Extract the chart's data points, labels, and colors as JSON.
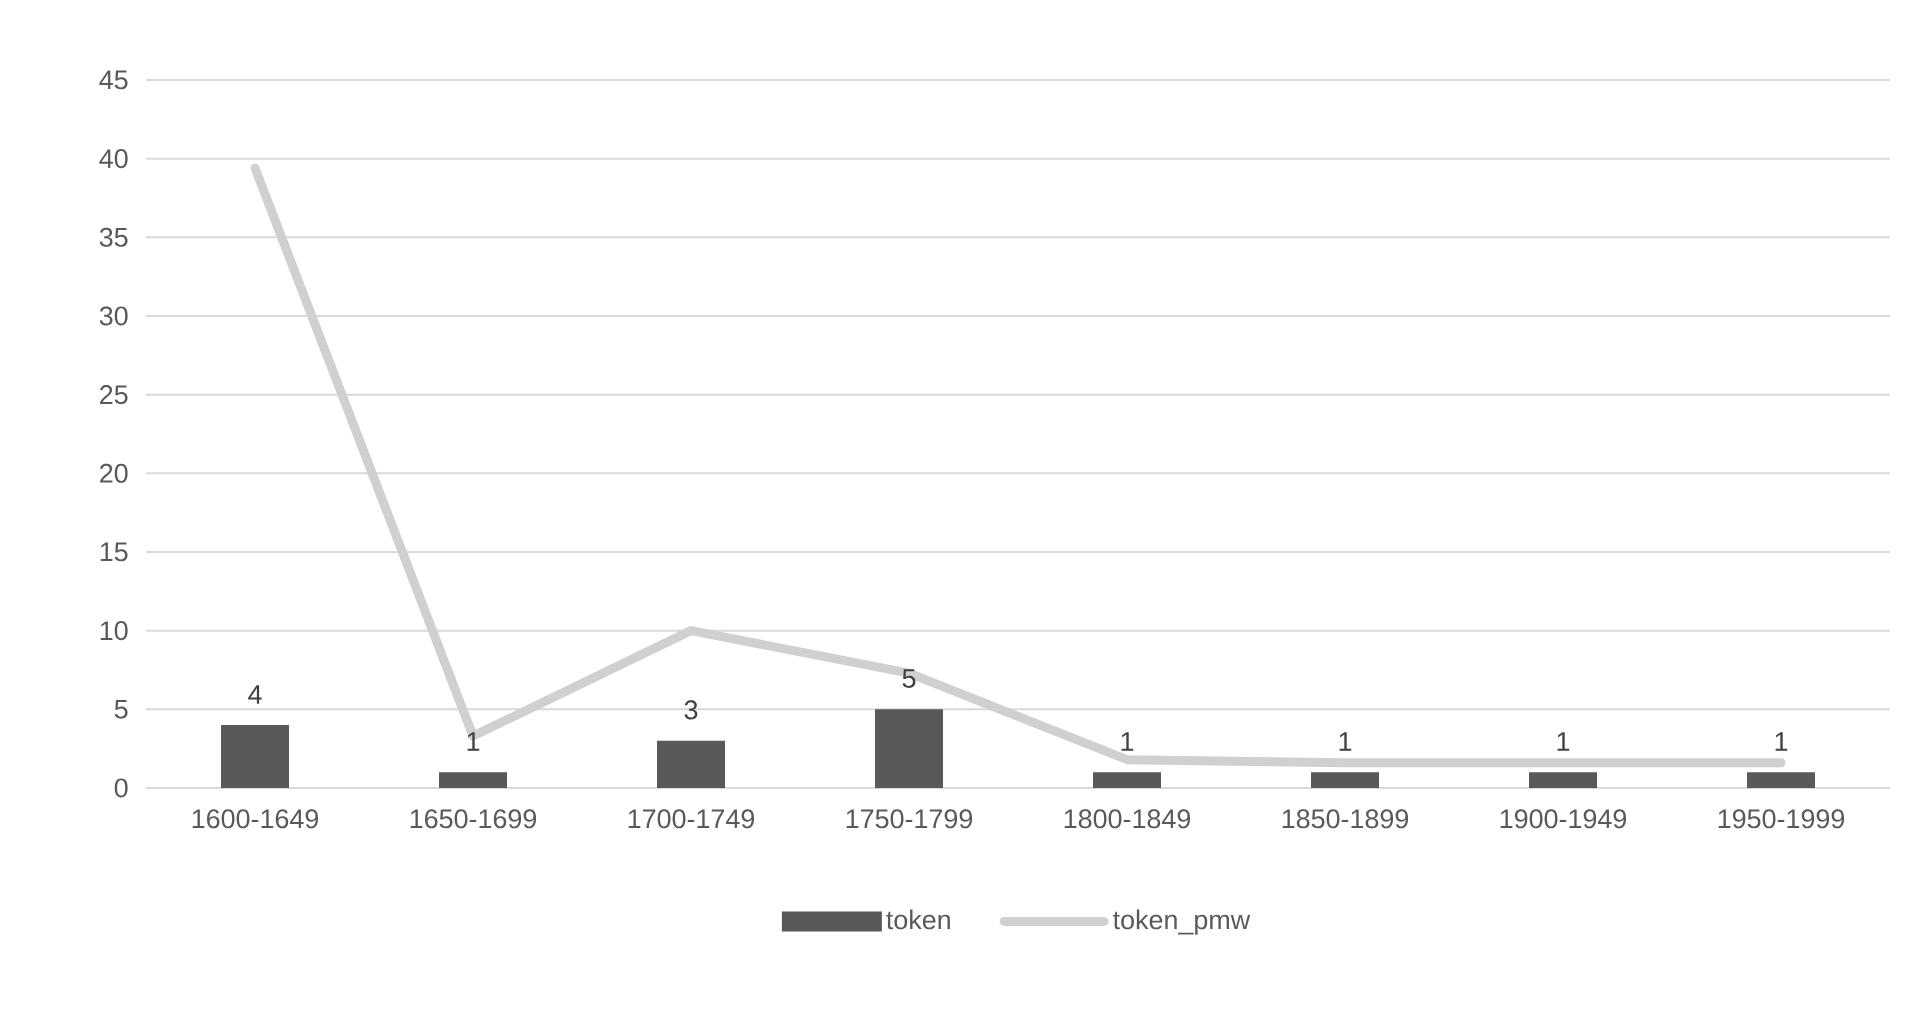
{
  "chart_data": {
    "type": "bar",
    "categories": [
      "1600-1649",
      "1650-1699",
      "1700-1749",
      "1750-1799",
      "1800-1849",
      "1850-1899",
      "1900-1949",
      "1950-1999"
    ],
    "series": [
      {
        "name": "token",
        "color": "#595959",
        "values": [
          4,
          1,
          3,
          5,
          1,
          1,
          1,
          1
        ],
        "value_labels": [
          "4",
          "1",
          "3",
          "5",
          "1",
          "1",
          "1",
          "1"
        ]
      },
      {
        "name": "token_pmw",
        "type": "line",
        "color": "#d0d0d0",
        "values": [
          39.4,
          3.3,
          10.0,
          7.3,
          1.8,
          1.6,
          1.6,
          1.6
        ]
      }
    ],
    "ylim": [
      0,
      45
    ],
    "yticks": [
      0,
      5,
      10,
      15,
      20,
      25,
      30,
      35,
      40,
      45
    ],
    "grid": "y",
    "legend": "bottom"
  }
}
